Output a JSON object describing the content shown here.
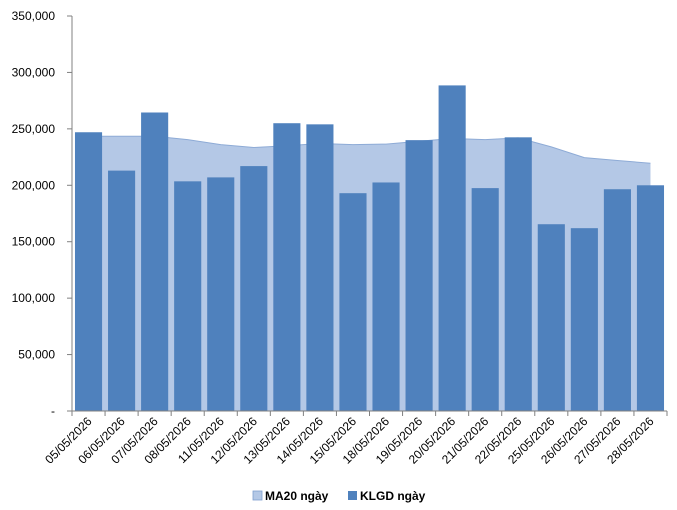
{
  "chart_data": {
    "type": "bar",
    "categories": [
      "05/05/2026",
      "06/05/2026",
      "07/05/2026",
      "08/05/2026",
      "11/05/2026",
      "12/05/2026",
      "13/05/2026",
      "14/05/2026",
      "15/05/2026",
      "18/05/2026",
      "19/05/2026",
      "20/05/2026",
      "21/05/2026",
      "22/05/2026",
      "25/05/2026",
      "26/05/2026",
      "27/05/2026",
      "28/05/2026"
    ],
    "series": [
      {
        "name": "MA20 ngày",
        "type": "area",
        "color": "#b4c8e6",
        "values": [
          243500,
          243500,
          243500,
          240500,
          236000,
          233500,
          235000,
          237000,
          236000,
          236500,
          239000,
          241500,
          240500,
          242000,
          234000,
          224500,
          222000,
          219500
        ]
      },
      {
        "name": "KLGD ngày",
        "type": "bar",
        "color": "#4f81bd",
        "values": [
          247000,
          213000,
          264500,
          203500,
          207000,
          217000,
          255000,
          254000,
          193000,
          202500,
          240000,
          288500,
          197500,
          242500,
          165500,
          162000,
          196500,
          200000
        ]
      }
    ],
    "yticks": [
      "-",
      "50,000",
      "100,000",
      "150,000",
      "200,000",
      "250,000",
      "300,000",
      "350,000"
    ],
    "ylim": [
      0,
      350000
    ],
    "legend_position": "bottom"
  }
}
